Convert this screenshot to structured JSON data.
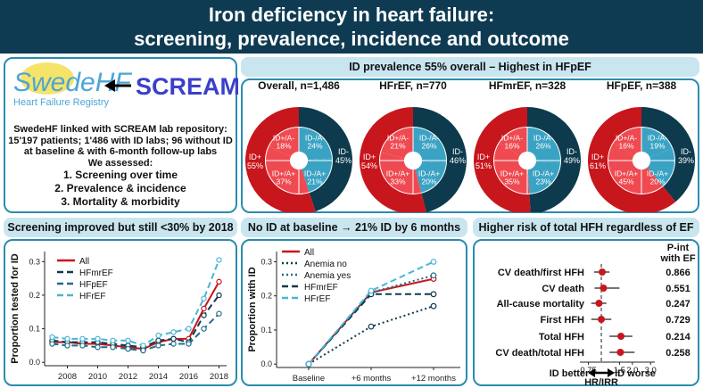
{
  "header": {
    "title_line1": "Iron deficiency in heart failure:",
    "title_line2": "screening, prevalence, incidence and outcome"
  },
  "left_box": {
    "logo_name": "SwedeHF",
    "logo_subtitle": "Heart Failure Registry",
    "arrow_icon": "left-arrow",
    "scream_label": "SCREAM",
    "description_lines": [
      "SwedeHF linked with SCREAM lab repository:",
      "15'197 patients; 1'486 with ID labs; 96 without ID",
      "at baseline & with 6-month follow-up labs"
    ],
    "assessed_title": "We assessed:",
    "assessed_items": [
      "1. Screening over time",
      "2. Prevalence & incidence",
      "3. Mortality & morbidity"
    ]
  },
  "prevalence": {
    "banner": "ID prevalence 55% overall – Highest in HFpEF",
    "donuts": [
      {
        "title": "Overall, n=1,486",
        "outer": {
          "id_plus": 55,
          "id_minus": 45
        },
        "inner": {
          "ida_plus": 37,
          "id_an_plus": 18,
          "id_an_minus": 24,
          "idm_an_plus": 21
        },
        "labels": {
          "outer_plus": "ID+\n55%",
          "outer_minus": "ID-\n45%",
          "q1": "ID+/A-\n18%",
          "q2": "ID-/A-\n24%",
          "q3": "ID+/A+\n37%",
          "q4": "ID-/A+\n21%"
        }
      },
      {
        "title": "HFrEF, n=770",
        "outer": {
          "id_plus": 54,
          "id_minus": 46
        },
        "inner": {
          "ida_plus": 33,
          "id_an_plus": 21,
          "id_an_minus": 26,
          "idm_an_plus": 20
        },
        "labels": {
          "outer_plus": "ID+\n54%",
          "outer_minus": "ID-\n46%",
          "q1": "ID+/A-\n21%",
          "q2": "ID-/A-\n26%",
          "q3": "ID+/A+\n33%",
          "q4": "ID-/A+\n20%"
        }
      },
      {
        "title": "HFmrEF, n=328",
        "outer": {
          "id_plus": 51,
          "id_minus": 49
        },
        "inner": {
          "ida_plus": 35,
          "id_an_plus": 16,
          "id_an_minus": 26,
          "idm_an_plus": 23
        },
        "labels": {
          "outer_plus": "ID+\n51%",
          "outer_minus": "ID-\n49%",
          "q1": "ID+/A-\n16%",
          "q2": "ID-/A-\n26%",
          "q3": "ID+/A+\n35%",
          "q4": "ID-/A+\n23%"
        }
      },
      {
        "title": "HFpEF, n=388",
        "outer": {
          "id_plus": 61,
          "id_minus": 39
        },
        "inner": {
          "ida_plus": 45,
          "id_an_plus": 16,
          "id_an_minus": 19,
          "idm_an_plus": 20
        },
        "labels": {
          "outer_plus": "ID+\n61%",
          "outer_minus": "ID-\n39%",
          "q1": "ID+/A-\n16%",
          "q2": "ID-/A-\n19%",
          "q3": "ID+/A+\n45%",
          "q4": "ID-/A+\n20%"
        }
      }
    ]
  },
  "colors": {
    "dark_red": "#c8161d",
    "light_red": "#ef4a51",
    "dark_navy": "#0d3a4c",
    "light_blue": "#3aa3c4",
    "banner_bg": "#c9e6f0",
    "header_bg": "#0e3b52",
    "border": "#2a8cb0"
  },
  "screening": {
    "banner": "Screening improved but still <30% by 2018",
    "ylabel": "Proportion tested for ID",
    "legend": [
      {
        "name": "All",
        "color": "#c8161d",
        "dash": "solid"
      },
      {
        "name": "HFmrEF",
        "color": "#0d3a4c",
        "dash": "dash"
      },
      {
        "name": "HFpEF",
        "color": "#1f6f8b",
        "dash": "dash"
      },
      {
        "name": "HFrEF",
        "color": "#49b5d4",
        "dash": "dash"
      }
    ],
    "x_ticks": [
      "2008",
      "2010",
      "2012",
      "2014",
      "2016",
      "2018"
    ],
    "y_ticks": [
      "0.0",
      "0.1",
      "0.2",
      "0.3"
    ]
  },
  "incidence": {
    "banner": "No ID at baseline → 21% ID by 6 months",
    "ylabel": "Proportion with ID",
    "legend": [
      {
        "name": "All",
        "color": "#c8161d",
        "dash": "solid"
      },
      {
        "name": "Anemia no",
        "color": "#0d3a4c",
        "dash": "dot"
      },
      {
        "name": "Anemia yes",
        "color": "#1f6f8b",
        "dash": "dot"
      },
      {
        "name": "HFmrEF",
        "color": "#0d3a4c",
        "dash": "dash"
      },
      {
        "name": "HFrEF",
        "color": "#49b5d4",
        "dash": "dash"
      }
    ],
    "x_ticks": [
      "Baseline",
      "+6 months",
      "+12 months"
    ],
    "y_ticks": [
      "0.0",
      "0.1",
      "0.2",
      "0.3"
    ]
  },
  "chart_data": [
    {
      "type": "line",
      "title": "Screening improved but still <30% by 2018",
      "xlabel": "",
      "ylabel": "Proportion tested for ID",
      "x": [
        2007,
        2008,
        2009,
        2010,
        2011,
        2012,
        2013,
        2014,
        2015,
        2016,
        2017,
        2018
      ],
      "ylim": [
        -0.01,
        0.33
      ],
      "series": [
        {
          "name": "All",
          "values": [
            0.06,
            0.06,
            0.055,
            0.055,
            0.05,
            0.045,
            0.04,
            0.06,
            0.07,
            0.07,
            0.16,
            0.24
          ]
        },
        {
          "name": "HFmrEF",
          "values": [
            0.065,
            0.06,
            0.06,
            0.06,
            0.055,
            0.05,
            0.045,
            0.065,
            0.07,
            0.06,
            0.14,
            0.2
          ]
        },
        {
          "name": "HFpEF",
          "values": [
            0.055,
            0.05,
            0.05,
            0.045,
            0.045,
            0.04,
            0.035,
            0.05,
            0.055,
            0.055,
            0.1,
            0.145
          ]
        },
        {
          "name": "HFrEF",
          "values": [
            0.075,
            0.07,
            0.07,
            0.07,
            0.065,
            0.065,
            0.05,
            0.08,
            0.09,
            0.1,
            0.19,
            0.305
          ]
        }
      ]
    },
    {
      "type": "line",
      "title": "No ID at baseline → 21% ID by 6 months",
      "xlabel": "",
      "ylabel": "Proportion with ID",
      "categories": [
        "Baseline",
        "+6 months",
        "+12 months"
      ],
      "ylim": [
        -0.01,
        0.33
      ],
      "series": [
        {
          "name": "All",
          "values": [
            0.0,
            0.21,
            0.25
          ]
        },
        {
          "name": "Anemia no",
          "values": [
            0.0,
            0.11,
            0.17
          ]
        },
        {
          "name": "Anemia yes",
          "values": [
            0.0,
            0.21,
            0.26
          ]
        },
        {
          "name": "HFmrEF",
          "values": [
            0.0,
            0.205,
            0.205
          ]
        },
        {
          "name": "HFrEF",
          "values": [
            0.0,
            0.215,
            0.3
          ]
        }
      ]
    },
    {
      "type": "scatter",
      "title": "Higher risk of total HFH regardless of EF",
      "xlabel": "HR/IRR",
      "x_scale": "log",
      "x_ticks": [
        "0.75",
        "1.5",
        "2.0",
        "3.0"
      ],
      "xlim": [
        0.62,
        3.3
      ],
      "left_note": "ID better",
      "right_note": "ID worse",
      "p_int_header": "P-int with EF",
      "rows": [
        {
          "label": "CV death/first HFH",
          "est": 1.02,
          "lo": 0.85,
          "hi": 1.2,
          "p_int": "0.866"
        },
        {
          "label": "CV death",
          "est": 1.05,
          "lo": 0.86,
          "hi": 1.5,
          "p_int": "0.551"
        },
        {
          "label": "All-cause mortality",
          "est": 0.95,
          "lo": 0.8,
          "hi": 1.12,
          "p_int": "0.247"
        },
        {
          "label": "First HFH",
          "est": 1.0,
          "lo": 0.8,
          "hi": 1.25,
          "p_int": "0.729"
        },
        {
          "label": "Total HFH",
          "est": 1.55,
          "lo": 1.2,
          "hi": 2.0,
          "p_int": "0.214"
        },
        {
          "label": "CV death/total HFH",
          "est": 1.53,
          "lo": 1.2,
          "hi": 2.1,
          "p_int": "0.258"
        }
      ]
    }
  ]
}
